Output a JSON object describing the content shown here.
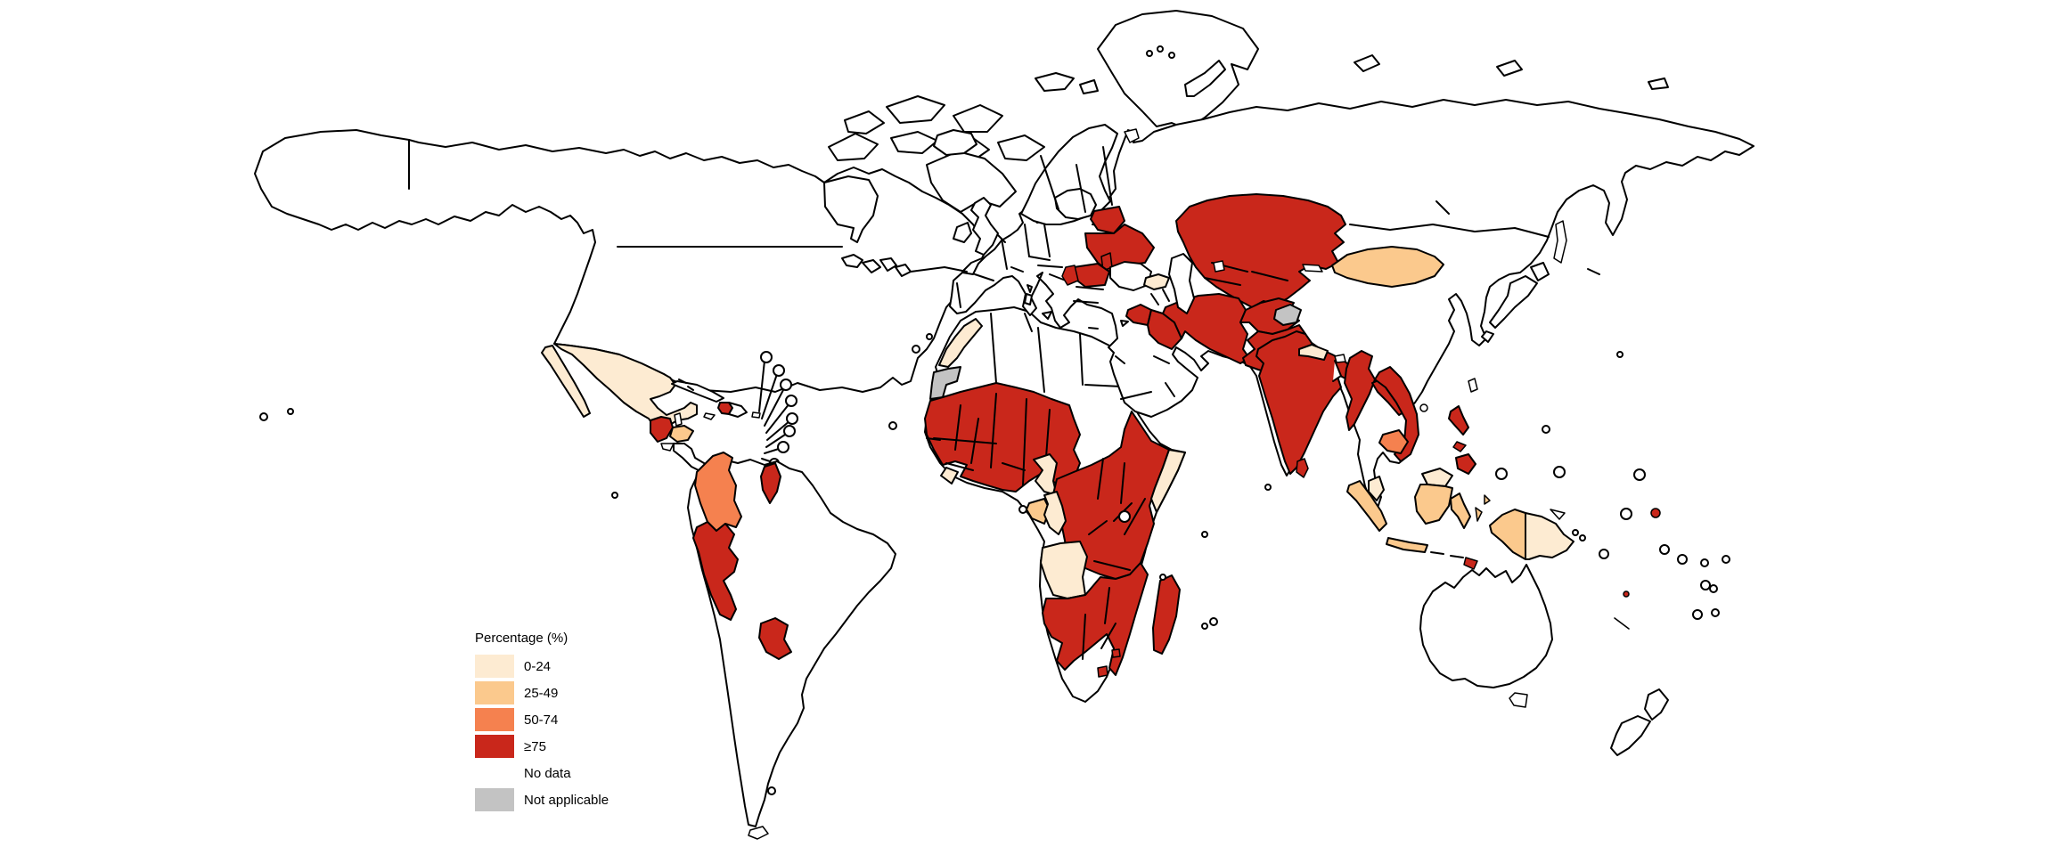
{
  "legend": {
    "title": "Percentage (%)",
    "items": [
      {
        "category": "0-24",
        "label": "0-24",
        "color": "#FDEBD2"
      },
      {
        "category": "25-49",
        "label": "25-49",
        "color": "#FBC98D"
      },
      {
        "category": "50-74",
        "label": "50-74",
        "color": "#F5814F"
      },
      {
        "category": "75+",
        "label": "≥75",
        "color": "#C9271B"
      },
      {
        "category": "no-data",
        "label": "No data",
        "color": "#FFFFFF"
      },
      {
        "category": "not-applicable",
        "label": "Not applicable",
        "color": "#C3C3C3"
      }
    ]
  },
  "map": {
    "type": "world-choropleth",
    "outline_color": "#000000",
    "ocean_color": "#FFFFFF",
    "regions": [
      {
        "id": "mexico",
        "category": "0-24"
      },
      {
        "id": "baja_california",
        "category": "0-24"
      },
      {
        "id": "guatemala",
        "category": "75+"
      },
      {
        "id": "honduras",
        "category": "25-49"
      },
      {
        "id": "haiti",
        "category": "75+"
      },
      {
        "id": "colombia",
        "category": "50-74"
      },
      {
        "id": "peru",
        "category": "75+"
      },
      {
        "id": "guyana",
        "category": "75+"
      },
      {
        "id": "paraguay",
        "category": "75+"
      },
      {
        "id": "morocco",
        "category": "0-24"
      },
      {
        "id": "western_sahara",
        "category": "not-applicable"
      },
      {
        "id": "west_africa_sahel",
        "category": "75+",
        "label": "Mauritania, Senegal, Guinea, Sierra Leone, Côte d'Ivoire, Ghana, Togo, Benin, Burkina Faso, Mali, Niger, Nigeria, Chad"
      },
      {
        "id": "liberia",
        "category": "0-24"
      },
      {
        "id": "cameroon",
        "category": "0-24"
      },
      {
        "id": "gabon",
        "category": "25-49"
      },
      {
        "id": "congo",
        "category": "0-24"
      },
      {
        "id": "angola",
        "category": "0-24"
      },
      {
        "id": "east_central_africa",
        "category": "75+",
        "label": "CAR, South Sudan, Eritrea, Djibouti, Ethiopia, Uganda, Kenya, DR Congo, Rwanda, Burundi, Tanzania"
      },
      {
        "id": "somalia",
        "category": "0-24"
      },
      {
        "id": "southern_africa",
        "category": "75+",
        "label": "Namibia, Botswana, Zambia, Zimbabwe, Malawi, Mozambique"
      },
      {
        "id": "madagascar",
        "category": "75+"
      },
      {
        "id": "lesotho",
        "category": "75+"
      },
      {
        "id": "eswatini",
        "category": "75+"
      },
      {
        "id": "belarus",
        "category": "75+"
      },
      {
        "id": "ukraine",
        "category": "75+"
      },
      {
        "id": "moldova",
        "category": "75+"
      },
      {
        "id": "romania",
        "category": "75+"
      },
      {
        "id": "serbia",
        "category": "75+"
      },
      {
        "id": "georgia_caucasus",
        "category": "0-24"
      },
      {
        "id": "syria",
        "category": "75+"
      },
      {
        "id": "iraq",
        "category": "75+"
      },
      {
        "id": "iran",
        "category": "75+"
      },
      {
        "id": "afghanistan",
        "category": "75+"
      },
      {
        "id": "pakistan",
        "category": "75+"
      },
      {
        "id": "central_asia",
        "category": "75+",
        "label": "Kazakhstan, Uzbekistan, Turkmenistan, Kyrgyzstan, Tajikistan"
      },
      {
        "id": "kashmir",
        "category": "not-applicable"
      },
      {
        "id": "india",
        "category": "75+"
      },
      {
        "id": "nepal",
        "category": "0-24"
      },
      {
        "id": "sri_lanka",
        "category": "75+"
      },
      {
        "id": "myanmar",
        "category": "75+"
      },
      {
        "id": "laos",
        "category": "75+"
      },
      {
        "id": "vietnam",
        "category": "75+"
      },
      {
        "id": "cambodia",
        "category": "50-74"
      },
      {
        "id": "mongolia",
        "category": "25-49"
      },
      {
        "id": "philippines",
        "category": "75+"
      },
      {
        "id": "malaysia",
        "category": "0-24"
      },
      {
        "id": "indonesia",
        "category": "25-49"
      },
      {
        "id": "papua_new_guinea",
        "category": "0-24"
      },
      {
        "id": "timor_leste",
        "category": "75+"
      },
      {
        "id": "pacific_island_1",
        "category": "75+"
      },
      {
        "id": "pacific_island_2",
        "category": "75+"
      }
    ]
  }
}
